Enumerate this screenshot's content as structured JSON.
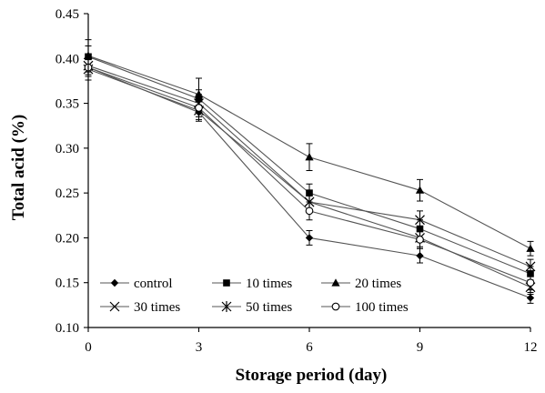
{
  "chart_data": {
    "type": "line",
    "title": "",
    "xlabel": "Storage period (day)",
    "ylabel": "Total acid (%)",
    "x": [
      0,
      3,
      6,
      9,
      12
    ],
    "x_tick_labels": [
      "0",
      "3",
      "6",
      "9",
      "12"
    ],
    "xlim": [
      0,
      12
    ],
    "ylim": [
      0.1,
      0.45
    ],
    "y_ticks": [
      0.1,
      0.15,
      0.2,
      0.25,
      0.3,
      0.35,
      0.4,
      0.45
    ],
    "y_tick_labels": [
      "0.10",
      "0.15",
      "0.20",
      "0.25",
      "0.30",
      "0.35",
      "0.40",
      "0.45"
    ],
    "grid": false,
    "legend_position": "bottom-left inside plot",
    "series": [
      {
        "name": "control",
        "marker": "diamond",
        "values": [
          0.39,
          0.34,
          0.2,
          0.18,
          0.133
        ],
        "errors": [
          0.01,
          0.008,
          0.008,
          0.008,
          0.006
        ]
      },
      {
        "name": "10 times",
        "marker": "square",
        "values": [
          0.402,
          0.355,
          0.25,
          0.21,
          0.16
        ],
        "errors": [
          0.012,
          0.01,
          0.01,
          0.01,
          0.008
        ]
      },
      {
        "name": "20 times",
        "marker": "triangle",
        "values": [
          0.403,
          0.36,
          0.29,
          0.253,
          0.188
        ],
        "errors": [
          0.018,
          0.018,
          0.015,
          0.012,
          0.008
        ]
      },
      {
        "name": "30 times",
        "marker": "x",
        "values": [
          0.392,
          0.35,
          0.24,
          0.22,
          0.168
        ],
        "errors": [
          0.01,
          0.01,
          0.01,
          0.01,
          0.008
        ]
      },
      {
        "name": "50 times",
        "marker": "asterisk",
        "values": [
          0.388,
          0.342,
          0.24,
          0.2,
          0.145
        ],
        "errors": [
          0.012,
          0.012,
          0.01,
          0.01,
          0.008
        ]
      },
      {
        "name": "100 times",
        "marker": "circle",
        "values": [
          0.39,
          0.345,
          0.23,
          0.198,
          0.15
        ],
        "errors": [
          0.01,
          0.01,
          0.01,
          0.01,
          0.008
        ]
      }
    ],
    "colors": {
      "line": "#555555",
      "marker": "#000000",
      "axis": "#000000"
    }
  }
}
